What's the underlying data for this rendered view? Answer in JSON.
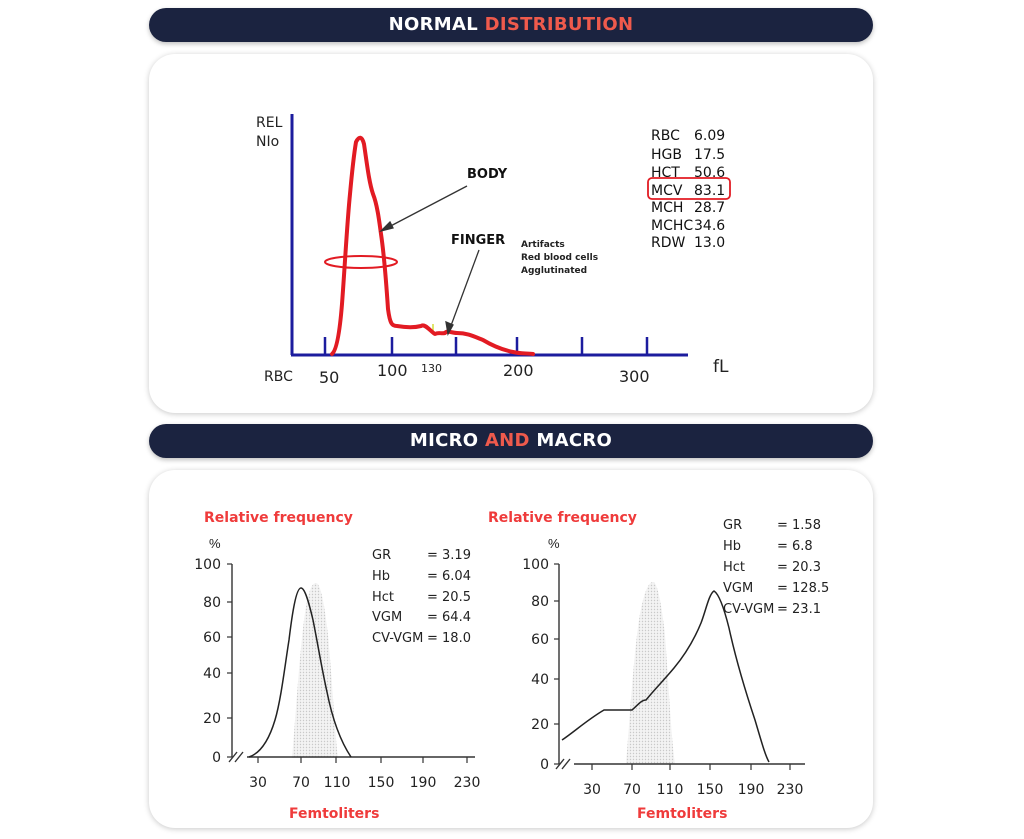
{
  "banner1": {
    "part1": "NORMAL",
    "part2": "DISTRIBUTION"
  },
  "banner2": {
    "part1": "MICRO",
    "part2": "AND",
    "part3": "MACRO"
  },
  "normal": {
    "ylabel1": "REL",
    "ylabel2": "NIo",
    "xprefix": "RBC",
    "ticks": [
      "50",
      "100",
      "130",
      "200",
      "300"
    ],
    "unit": "fL",
    "body": "BODY",
    "finger": "FINGER",
    "artifacts": [
      "Artifacts",
      "Red blood cells",
      "Agglutinated"
    ],
    "values": [
      {
        "k": "RBC",
        "v": "6.09"
      },
      {
        "k": "HGB",
        "v": "17.5"
      },
      {
        "k": "HCT",
        "v": "50.6"
      },
      {
        "k": "MCV",
        "v": "83.1"
      },
      {
        "k": "MCH",
        "v": "28.7"
      },
      {
        "k": "MCHC",
        "v": "34.6"
      },
      {
        "k": "RDW",
        "v": "13.0"
      }
    ],
    "highlight_color": "#e21b23",
    "curve_color": "#e21b23",
    "axis_color": "#1c1c9e"
  },
  "micro": {
    "title": "Relative frequency",
    "percent": "%",
    "yticks": [
      "100",
      "80",
      "60",
      "40",
      "20",
      "0"
    ],
    "xticks": [
      "30",
      "70",
      "110",
      "150",
      "190",
      "230"
    ],
    "xlabel": "Femtoliters",
    "values": [
      {
        "k": "GR",
        "v": "= 3.19"
      },
      {
        "k": "Hb",
        "v": "= 6.04"
      },
      {
        "k": "Hct",
        "v": "= 20.5"
      },
      {
        "k": "VGM",
        "v": "= 64.4"
      },
      {
        "k": "CV-VGM",
        "v": "= 18.0"
      }
    ]
  },
  "macro": {
    "title": "Relative frequency",
    "percent": "%",
    "yticks": [
      "100",
      "80",
      "60",
      "40",
      "20",
      "0"
    ],
    "xticks": [
      "30",
      "70",
      "110",
      "150",
      "190",
      "230"
    ],
    "xlabel": "Femtoliters",
    "values": [
      {
        "k": "GR",
        "v": "= 1.58"
      },
      {
        "k": "Hb",
        "v": "= 6.8"
      },
      {
        "k": "Hct",
        "v": "= 20.3"
      },
      {
        "k": "VGM",
        "v": "= 128.5"
      },
      {
        "k": "CV-VGM",
        "v": "= 23.1"
      }
    ]
  },
  "accent_color": "#ef5a4c"
}
